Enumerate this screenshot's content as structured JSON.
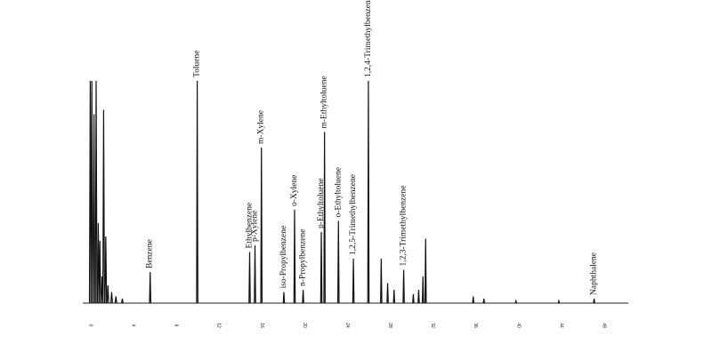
{
  "chart_data": {
    "type": "line",
    "title": "",
    "xlabel": "",
    "ylabel": "",
    "xlim": [
      -0.5,
      50.5
    ],
    "ylim": [
      0,
      100
    ],
    "grid": false,
    "legend": "none",
    "tick_values": [
      0,
      4,
      8,
      12,
      16,
      20,
      24,
      28,
      32,
      36,
      40,
      44,
      48
    ],
    "tick_labels": [
      "0",
      "4",
      "8",
      "12",
      "16",
      "20",
      "24",
      "28",
      "32",
      "36",
      "40",
      "44",
      "48"
    ],
    "solvent_peaks": [
      {
        "rt": 0.2,
        "height": 100
      },
      {
        "rt": 0.35,
        "height": 100
      },
      {
        "rt": 0.55,
        "height": 85
      },
      {
        "rt": 0.75,
        "height": 100
      },
      {
        "rt": 0.95,
        "height": 36
      },
      {
        "rt": 1.1,
        "height": 28
      },
      {
        "rt": 1.3,
        "height": 12
      },
      {
        "rt": 1.45,
        "height": 87
      },
      {
        "rt": 1.65,
        "height": 30
      },
      {
        "rt": 1.85,
        "height": 8
      },
      {
        "rt": 2.2,
        "height": 5
      },
      {
        "rt": 2.6,
        "height": 3
      },
      {
        "rt": 3.2,
        "height": 2
      }
    ],
    "peaks": [
      {
        "label": "Benzene",
        "rt": 5.8,
        "height": 14
      },
      {
        "label": "Toluene",
        "rt": 10.2,
        "height": 100
      },
      {
        "label": "Ethylbenzene",
        "rt": 15.1,
        "height": 23
      },
      {
        "label": "p-Xylene",
        "rt": 15.6,
        "height": 26
      },
      {
        "label": "m-Xylene",
        "rt": 16.2,
        "height": 70
      },
      {
        "label": "iso-Propylbenzene",
        "rt": 18.3,
        "height": 5
      },
      {
        "label": "o-Xylene",
        "rt": 19.3,
        "height": 42
      },
      {
        "label": "n-Propylbenzene",
        "rt": 20.1,
        "height": 6
      },
      {
        "label": "p-Ethyltoluene",
        "rt": 21.8,
        "height": 32
      },
      {
        "label": "m-Ethyltoluene",
        "rt": 22.1,
        "height": 77
      },
      {
        "label": "o-Ethyltoluene",
        "rt": 23.4,
        "height": 37
      },
      {
        "label": "1,2,5-Trimethylbenzene",
        "rt": 24.8,
        "height": 20
      },
      {
        "label": "1,2,4-Trimethylbenzene",
        "rt": 26.2,
        "height": 100
      },
      {
        "label": "",
        "rt": 27.4,
        "height": 20
      },
      {
        "label": "",
        "rt": 28.0,
        "height": 9
      },
      {
        "label": "",
        "rt": 28.6,
        "height": 6
      },
      {
        "label": "1,2,3-Trimethylbenzene",
        "rt": 29.5,
        "height": 15
      },
      {
        "label": "",
        "rt": 30.4,
        "height": 4
      },
      {
        "label": "",
        "rt": 30.9,
        "height": 6
      },
      {
        "label": "",
        "rt": 31.3,
        "height": 12
      },
      {
        "label": "",
        "rt": 31.55,
        "height": 29
      },
      {
        "label": "",
        "rt": 36.0,
        "height": 3
      },
      {
        "label": "",
        "rt": 37.0,
        "height": 2
      },
      {
        "label": "",
        "rt": 40.0,
        "height": 1
      },
      {
        "label": "",
        "rt": 44.0,
        "height": 1
      },
      {
        "label": "Naphthalene",
        "rt": 47.3,
        "height": 2
      }
    ]
  }
}
